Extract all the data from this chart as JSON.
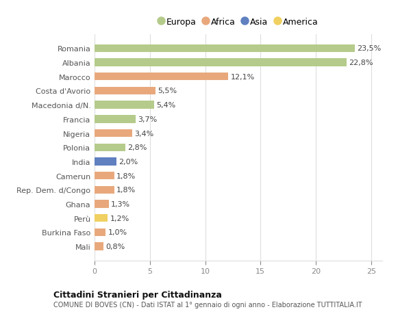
{
  "categories": [
    "Romania",
    "Albania",
    "Marocco",
    "Costa d'Avorio",
    "Macedonia d/N.",
    "Francia",
    "Nigeria",
    "Polonia",
    "India",
    "Camerun",
    "Rep. Dem. d/Congo",
    "Ghana",
    "Perù",
    "Burkina Faso",
    "Mali"
  ],
  "values": [
    23.5,
    22.8,
    12.1,
    5.5,
    5.4,
    3.7,
    3.4,
    2.8,
    2.0,
    1.8,
    1.8,
    1.3,
    1.2,
    1.0,
    0.8
  ],
  "labels": [
    "23,5%",
    "22,8%",
    "12,1%",
    "5,5%",
    "5,4%",
    "3,7%",
    "3,4%",
    "2,8%",
    "2,0%",
    "1,8%",
    "1,8%",
    "1,3%",
    "1,2%",
    "1,0%",
    "0,8%"
  ],
  "colors": [
    "#b5cb8b",
    "#b5cb8b",
    "#e8a87c",
    "#e8a87c",
    "#b5cb8b",
    "#b5cb8b",
    "#e8a87c",
    "#b5cb8b",
    "#6080c0",
    "#e8a87c",
    "#e8a87c",
    "#e8a87c",
    "#f0d060",
    "#e8a87c",
    "#e8a87c"
  ],
  "legend_labels": [
    "Europa",
    "Africa",
    "Asia",
    "America"
  ],
  "legend_colors": [
    "#b5cb8b",
    "#e8a87c",
    "#6080c0",
    "#f0d060"
  ],
  "xlim": [
    0,
    26
  ],
  "xticks": [
    0,
    5,
    10,
    15,
    20,
    25
  ],
  "title_bold": "Cittadini Stranieri per Cittadinanza",
  "subtitle": "COMUNE DI BOVES (CN) - Dati ISTAT al 1° gennaio di ogni anno - Elaborazione TUTTITALIA.IT",
  "background_color": "#ffffff",
  "grid_color": "#dddddd",
  "bar_height": 0.55,
  "value_fontsize": 8,
  "tick_fontsize": 8,
  "legend_fontsize": 9
}
